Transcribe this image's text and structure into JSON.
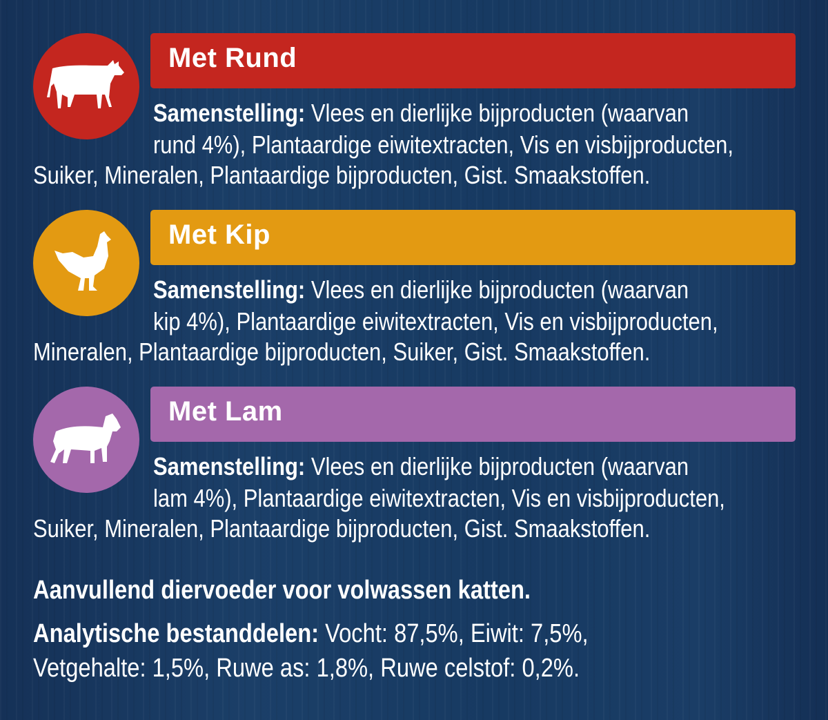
{
  "colors": {
    "rund": "#c4261f",
    "kip": "#e39a12",
    "lam": "#a468ab",
    "background": "#17385e"
  },
  "sections": [
    {
      "title": "Met Rund",
      "icon": "cow-icon",
      "label": "Samenstelling:",
      "line1": " Vlees en dierlijke bijproducten (waarvan",
      "line2": "rund 4%), Plantaardige eiwitextracten, Vis en visbijproducten,",
      "line3": "Suiker, Mineralen, Plantaardige bijproducten, Gist. Smaakstoffen."
    },
    {
      "title": "Met Kip",
      "icon": "chicken-icon",
      "label": "Samenstelling:",
      "line1": " Vlees en dierlijke bijproducten (waarvan",
      "line2": "kip 4%), Plantaardige eiwitextracten, Vis en visbijproducten,",
      "line3": "Mineralen, Plantaardige bijproducten, Suiker, Gist. Smaakstoffen."
    },
    {
      "title": "Met Lam",
      "icon": "lamb-icon",
      "label": "Samenstelling:",
      "line1": " Vlees en dierlijke bijproducten (waarvan",
      "line2": "lam 4%), Plantaardige eiwitextracten, Vis en visbijproducten,",
      "line3": "Suiker, Mineralen, Plantaardige bijproducten, Gist. Smaakstoffen."
    }
  ],
  "footer": {
    "statement": "Aanvullend diervoeder voor volwassen katten.",
    "analysis_label": "Analytische bestanddelen:",
    "analysis_line1": " Vocht: 87,5%, Eiwit: 7,5%,",
    "analysis_line2": "Vetgehalte: 1,5%, Ruwe as: 1,8%, Ruwe celstof: 0,2%."
  }
}
